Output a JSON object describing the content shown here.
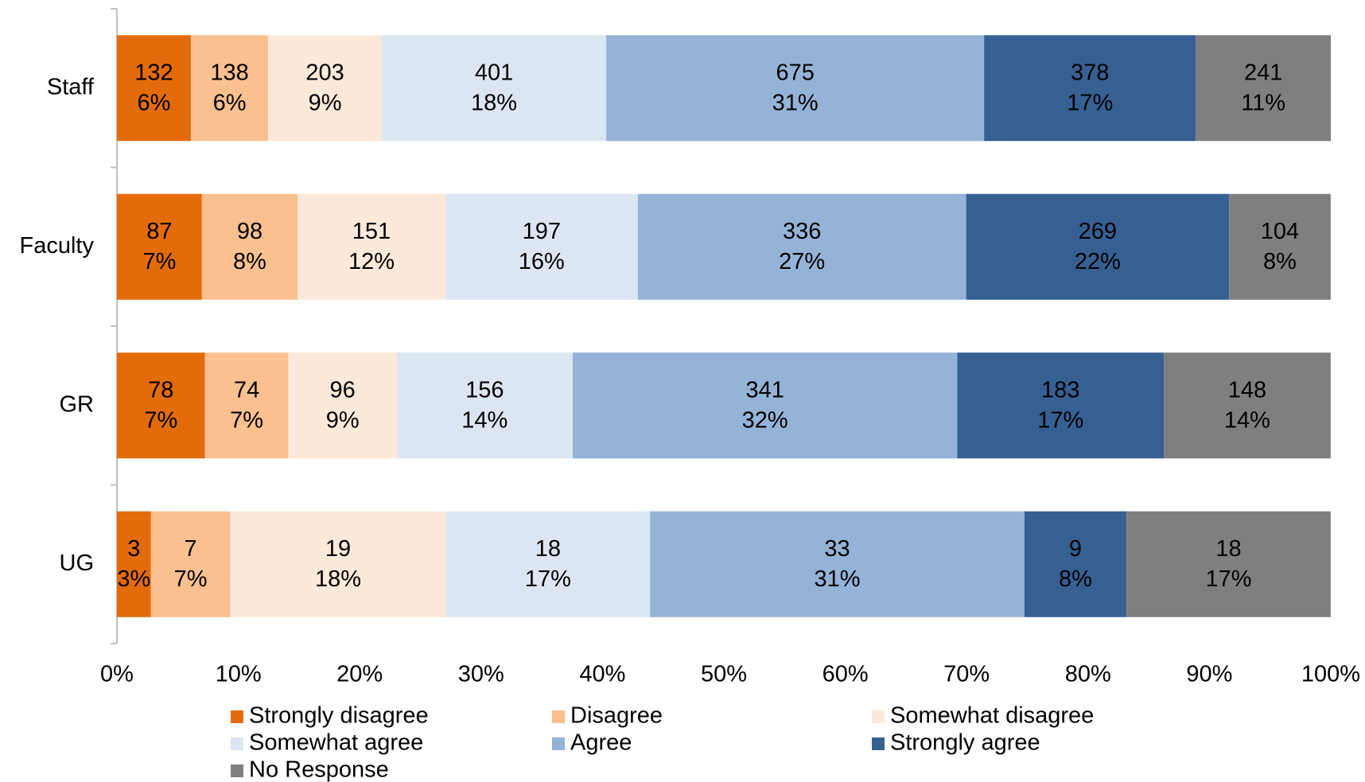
{
  "chart_data": {
    "type": "stacked-bar-100",
    "categories": [
      "Staff",
      "Faculty",
      "GR",
      "UG"
    ],
    "series": [
      {
        "name": "Strongly disagree",
        "color": "#e36c0a",
        "label_color": "#000000",
        "values": [
          6.09,
          7.0,
          7.25,
          2.8
        ],
        "value_labels": [
          "6%",
          "7%",
          "7%",
          "3%"
        ],
        "counts": [
          132,
          87,
          78,
          3
        ]
      },
      {
        "name": "Disagree",
        "color": "#fac090",
        "label_color": "#000000",
        "values": [
          6.37,
          7.89,
          6.88,
          6.54
        ],
        "value_labels": [
          "6%",
          "8%",
          "7%",
          "7%"
        ],
        "counts": [
          138,
          98,
          74,
          7
        ]
      },
      {
        "name": "Somewhat disagree",
        "color": "#fde9d9",
        "label_color": "#000000",
        "values": [
          9.36,
          12.16,
          8.92,
          17.76
        ],
        "value_labels": [
          "9%",
          "12%",
          "9%",
          "18%"
        ],
        "counts": [
          203,
          151,
          96,
          19
        ]
      },
      {
        "name": "Somewhat agree",
        "color": "#dce6f2",
        "label_color": "#000000",
        "values": [
          18.49,
          15.86,
          14.49,
          16.82
        ],
        "value_labels": [
          "18%",
          "16%",
          "14%",
          "17%"
        ],
        "counts": [
          401,
          197,
          156,
          18
        ]
      },
      {
        "name": "Agree",
        "color": "#95b3d7",
        "label_color": "#000000",
        "values": [
          31.13,
          27.05,
          31.69,
          30.84
        ],
        "value_labels": [
          "31%",
          "27%",
          "32%",
          "31%"
        ],
        "counts": [
          675,
          336,
          341,
          33
        ]
      },
      {
        "name": "Strongly agree",
        "color": "#376092",
        "label_color": "#ffffff",
        "values": [
          17.44,
          21.66,
          17.01,
          8.41
        ],
        "value_labels": [
          "17%",
          "22%",
          "17%",
          "8%"
        ],
        "counts": [
          378,
          269,
          183,
          9
        ]
      },
      {
        "name": "No Response",
        "color": "#7f7f7f",
        "label_color": "#ffffff",
        "values": [
          11.12,
          8.37,
          13.75,
          16.82
        ],
        "value_labels": [
          "11%",
          "8%",
          "14%",
          "17%"
        ],
        "counts": [
          241,
          104,
          148,
          18
        ]
      }
    ],
    "xlim": [
      0,
      100
    ],
    "xticks": [
      {
        "value": 0,
        "label": "0%"
      },
      {
        "value": 10,
        "label": "10%"
      },
      {
        "value": 20,
        "label": "20%"
      },
      {
        "value": 30,
        "label": "30%"
      },
      {
        "value": 40,
        "label": "40%"
      },
      {
        "value": 50,
        "label": "50%"
      },
      {
        "value": 60,
        "label": "60%"
      },
      {
        "value": 70,
        "label": "70%"
      },
      {
        "value": 80,
        "label": "80%"
      },
      {
        "value": 90,
        "label": "90%"
      },
      {
        "value": 100,
        "label": "100%"
      }
    ],
    "grid": false,
    "legend": "bottom"
  }
}
